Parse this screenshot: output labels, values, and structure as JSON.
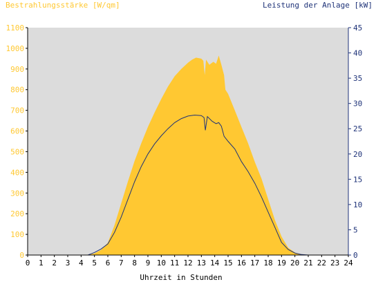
{
  "chart_data": {
    "type": "area",
    "title_left": "Bestrahlungsstärke [W/qm]",
    "title_right": "Leistung der Anlage [kW]",
    "xlabel": "Uhrzeit in Stunden",
    "xlim": [
      0,
      24
    ],
    "x_ticks": [
      "0",
      "1",
      "2",
      "3",
      "4",
      "5",
      "6",
      "7",
      "8",
      "9",
      "10",
      "11",
      "12",
      "13",
      "14",
      "15",
      "16",
      "17",
      "18",
      "19",
      "20",
      "21",
      "22",
      "23",
      "24"
    ],
    "y_left": {
      "ylim": [
        0,
        1100
      ],
      "ticks": [
        "0",
        "100",
        "200",
        "300",
        "400",
        "500",
        "600",
        "700",
        "800",
        "900",
        "1000",
        "1100"
      ],
      "color": "#ffc832"
    },
    "y_right": {
      "ylim": [
        0,
        45
      ],
      "ticks": [
        "0",
        "5",
        "10",
        "15",
        "20",
        "25",
        "30",
        "35",
        "40",
        "45"
      ],
      "color": "#1e3278"
    },
    "series": [
      {
        "axis": "left",
        "style": "filled-area",
        "color": "#ffc832",
        "points": [
          [
            0,
            0
          ],
          [
            4.5,
            0
          ],
          [
            5,
            8
          ],
          [
            5.5,
            25
          ],
          [
            6,
            60
          ],
          [
            6.5,
            145
          ],
          [
            7,
            250
          ],
          [
            7.5,
            355
          ],
          [
            8,
            455
          ],
          [
            8.5,
            540
          ],
          [
            9,
            620
          ],
          [
            9.5,
            690
          ],
          [
            10,
            755
          ],
          [
            10.5,
            815
          ],
          [
            11,
            865
          ],
          [
            11.5,
            900
          ],
          [
            12,
            930
          ],
          [
            12.3,
            945
          ],
          [
            12.6,
            955
          ],
          [
            13,
            950
          ],
          [
            13.15,
            940
          ],
          [
            13.25,
            870
          ],
          [
            13.35,
            945
          ],
          [
            13.6,
            920
          ],
          [
            13.9,
            935
          ],
          [
            14.1,
            925
          ],
          [
            14.3,
            965
          ],
          [
            14.5,
            920
          ],
          [
            14.7,
            870
          ],
          [
            14.8,
            800
          ],
          [
            15,
            780
          ],
          [
            15.5,
            700
          ],
          [
            16,
            620
          ],
          [
            16.5,
            540
          ],
          [
            17,
            450
          ],
          [
            17.5,
            370
          ],
          [
            18,
            270
          ],
          [
            18.5,
            170
          ],
          [
            19,
            90
          ],
          [
            19.5,
            35
          ],
          [
            20,
            12
          ],
          [
            20.5,
            3
          ],
          [
            21,
            0
          ],
          [
            24,
            0
          ]
        ]
      },
      {
        "axis": "right",
        "style": "line",
        "color": "#1e3278",
        "points": [
          [
            0,
            0
          ],
          [
            4.5,
            0
          ],
          [
            5,
            0.5
          ],
          [
            5.5,
            1.2
          ],
          [
            6,
            2.2
          ],
          [
            6.5,
            4.5
          ],
          [
            7,
            7.5
          ],
          [
            7.5,
            11
          ],
          [
            8,
            14.5
          ],
          [
            8.5,
            17.5
          ],
          [
            9,
            20
          ],
          [
            9.5,
            22
          ],
          [
            10,
            23.6
          ],
          [
            10.5,
            25
          ],
          [
            11,
            26.2
          ],
          [
            11.5,
            27
          ],
          [
            12,
            27.5
          ],
          [
            12.5,
            27.7
          ],
          [
            13,
            27.6
          ],
          [
            13.2,
            27.2
          ],
          [
            13.3,
            24.7
          ],
          [
            13.45,
            27.4
          ],
          [
            13.8,
            26.5
          ],
          [
            14.1,
            26
          ],
          [
            14.3,
            26.2
          ],
          [
            14.5,
            25.5
          ],
          [
            14.7,
            23.5
          ],
          [
            15,
            22.5
          ],
          [
            15.5,
            21
          ],
          [
            16,
            18.5
          ],
          [
            16.5,
            16.5
          ],
          [
            17,
            14.2
          ],
          [
            17.5,
            11.5
          ],
          [
            18,
            8.5
          ],
          [
            18.5,
            5.5
          ],
          [
            19,
            2.5
          ],
          [
            19.5,
            1.1
          ],
          [
            20,
            0.4
          ],
          [
            20.5,
            0.1
          ],
          [
            21,
            0
          ],
          [
            24,
            0
          ]
        ]
      }
    ],
    "grid": false,
    "plot_background": "#dcdcdc"
  }
}
